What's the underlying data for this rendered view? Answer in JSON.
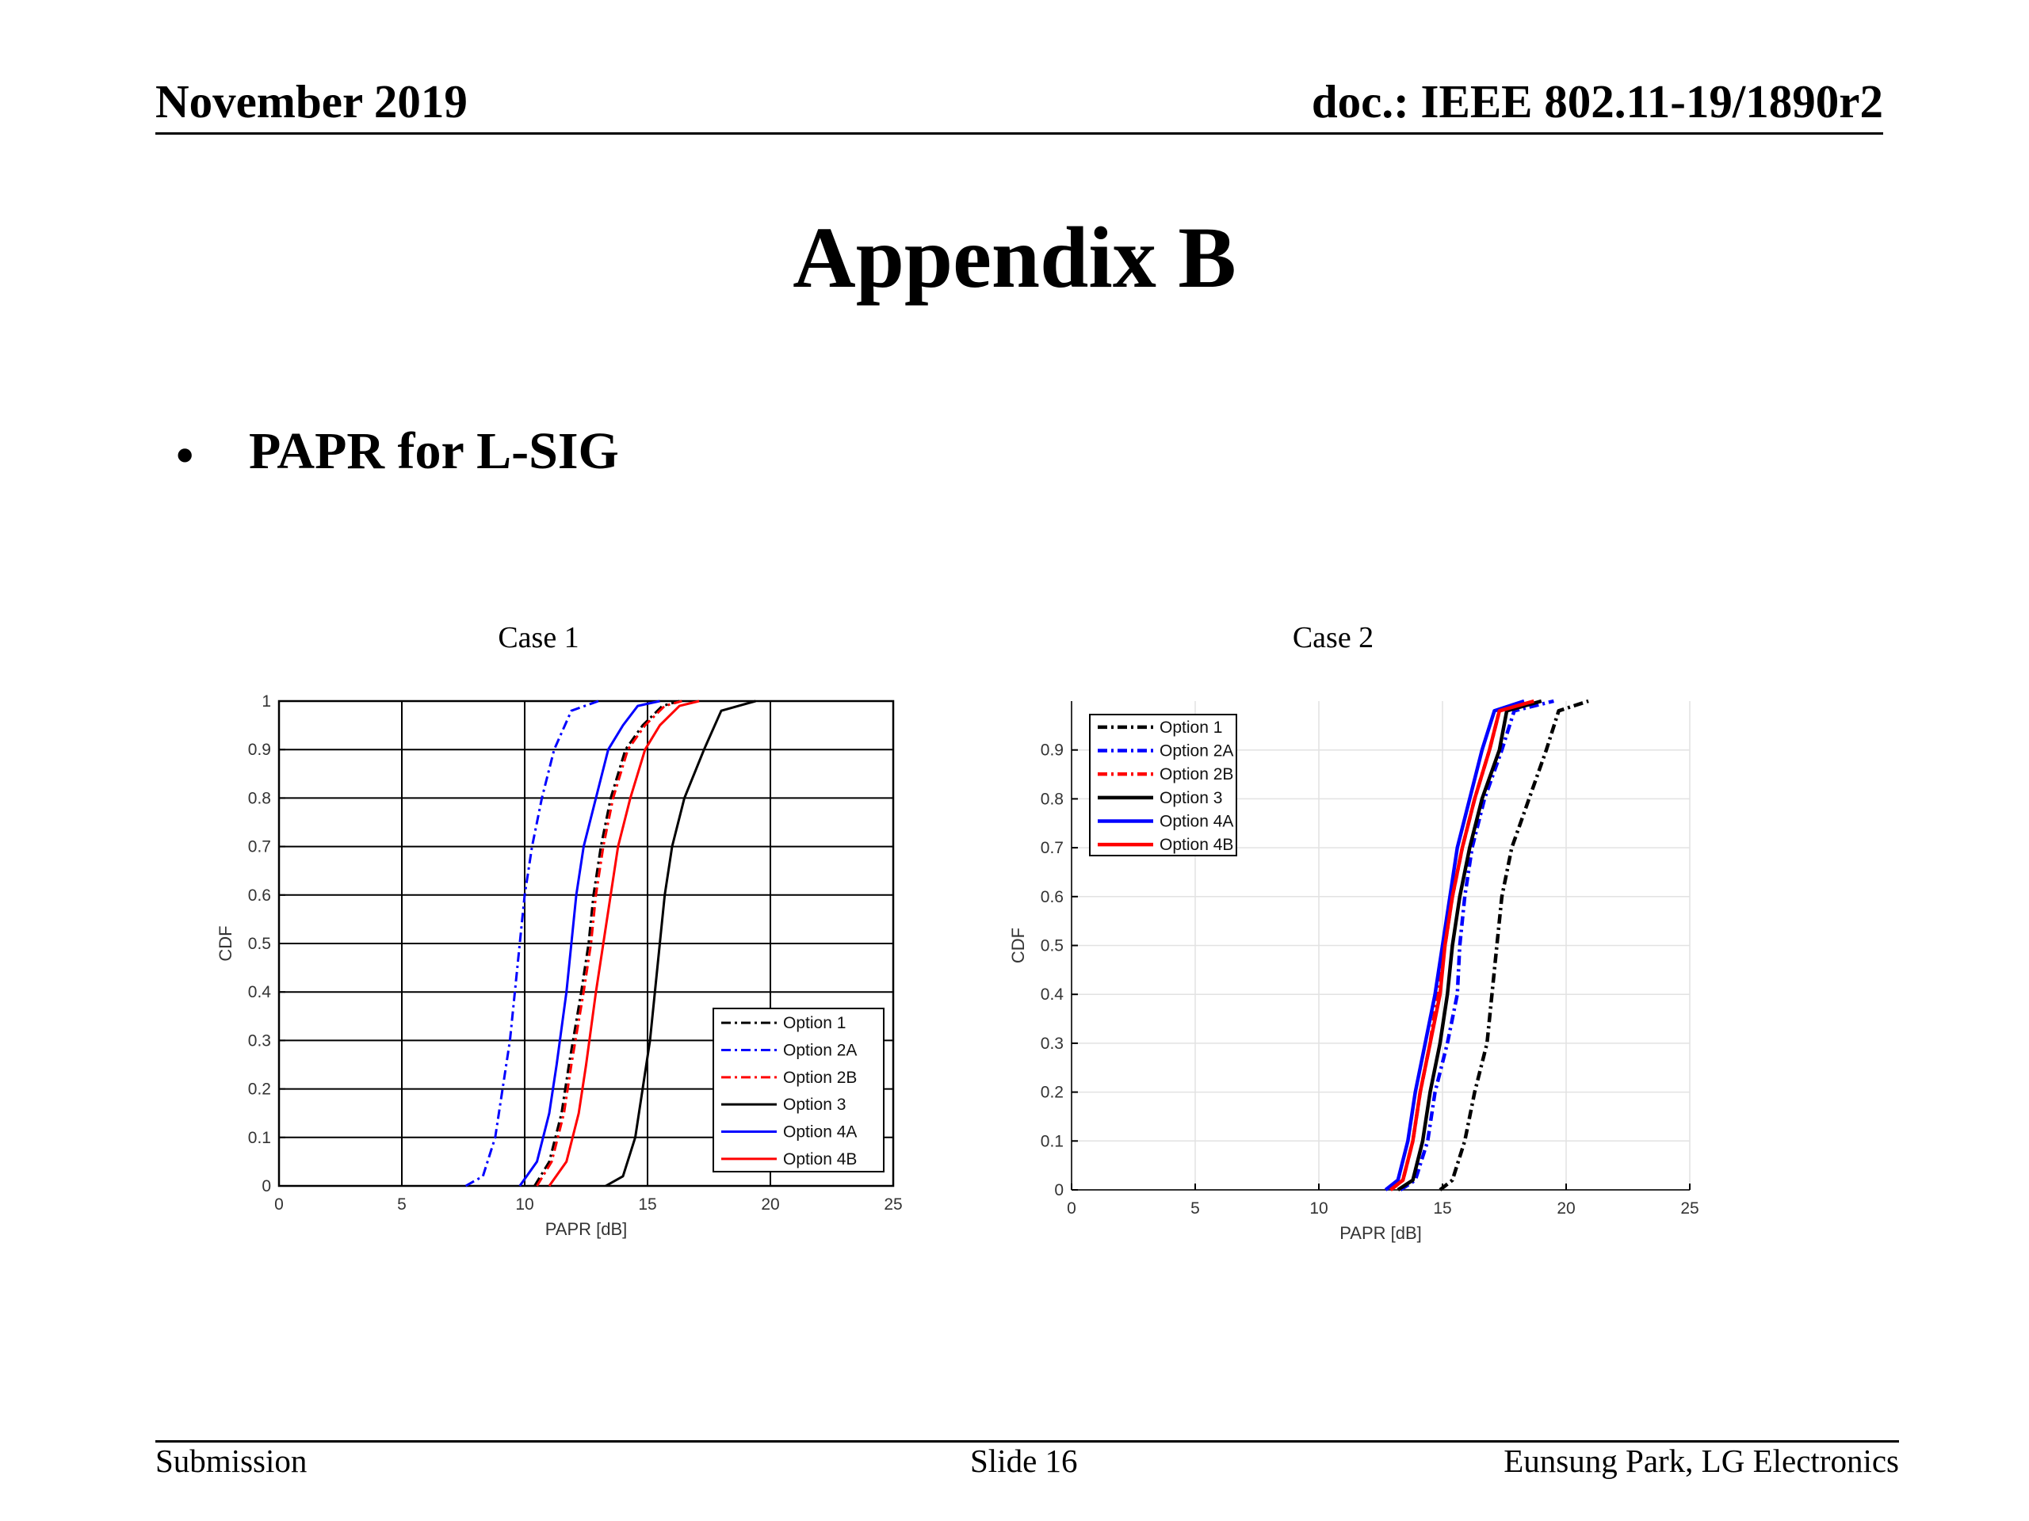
{
  "header": {
    "date": "November 2019",
    "doc": "doc.: IEEE 802.11-19/1890r2"
  },
  "title": "Appendix B",
  "bullet": {
    "symbol": "•",
    "text": "PAPR for L-SIG"
  },
  "footer": {
    "left": "Submission",
    "center": "Slide 16",
    "right": "Eunsung Park, LG Electronics"
  },
  "chart_data": [
    {
      "type": "line",
      "title": "Case 1",
      "xlabel": "PAPR [dB]",
      "ylabel": "CDF",
      "xlim": [
        0,
        25
      ],
      "ylim": [
        0,
        1
      ],
      "xticks": [
        0,
        5,
        10,
        15,
        20,
        25
      ],
      "yticks": [
        0,
        0.1,
        0.2,
        0.3,
        0.4,
        0.5,
        0.6,
        0.7,
        0.8,
        0.9,
        1
      ],
      "ytick_labels": [
        "0",
        "0.1",
        "0.2",
        "0.3",
        "0.4",
        "0.5",
        "0.6",
        "0.7",
        "0.8",
        "0.9",
        "1"
      ],
      "grid": "major",
      "legend_position": "bottom-right",
      "series": [
        {
          "name": "Option 1",
          "color": "#000000",
          "style": "dashdot",
          "x": [
            10.4,
            11.0,
            11.5,
            11.8,
            12.3,
            12.6,
            12.8,
            13.1,
            13.5,
            14.1,
            14.8,
            15.6,
            16.3
          ],
          "y": [
            0,
            0.05,
            0.15,
            0.25,
            0.4,
            0.5,
            0.6,
            0.7,
            0.8,
            0.9,
            0.95,
            0.99,
            1
          ]
        },
        {
          "name": "Option 2A",
          "color": "#0000ff",
          "style": "dashdot",
          "x": [
            7.6,
            8.3,
            8.8,
            9.1,
            9.4,
            9.6,
            9.8,
            10.0,
            10.3,
            10.7,
            11.2,
            11.9,
            13.0
          ],
          "y": [
            0,
            0.02,
            0.1,
            0.2,
            0.3,
            0.4,
            0.5,
            0.6,
            0.7,
            0.8,
            0.9,
            0.98,
            1
          ]
        },
        {
          "name": "Option 2B",
          "color": "#ff0000",
          "style": "dashdot",
          "x": [
            10.5,
            11.1,
            11.6,
            11.9,
            12.4,
            12.7,
            12.9,
            13.2,
            13.6,
            14.2,
            14.9,
            15.7,
            16.4
          ],
          "y": [
            0,
            0.05,
            0.15,
            0.25,
            0.4,
            0.5,
            0.6,
            0.7,
            0.8,
            0.9,
            0.95,
            0.99,
            1
          ]
        },
        {
          "name": "Option 3",
          "color": "#000000",
          "style": "solid",
          "x": [
            13.3,
            14.0,
            14.5,
            14.8,
            15.1,
            15.3,
            15.5,
            15.7,
            16.0,
            16.5,
            17.3,
            18.0,
            19.4
          ],
          "y": [
            0,
            0.02,
            0.1,
            0.2,
            0.3,
            0.4,
            0.5,
            0.6,
            0.7,
            0.8,
            0.9,
            0.98,
            1
          ]
        },
        {
          "name": "Option 4A",
          "color": "#0000ff",
          "style": "solid",
          "x": [
            9.8,
            10.5,
            11.0,
            11.3,
            11.7,
            11.9,
            12.1,
            12.4,
            12.9,
            13.4,
            14.0,
            14.6,
            15.5
          ],
          "y": [
            0,
            0.05,
            0.15,
            0.25,
            0.4,
            0.5,
            0.6,
            0.7,
            0.8,
            0.9,
            0.95,
            0.99,
            1
          ]
        },
        {
          "name": "Option 4B",
          "color": "#ff0000",
          "style": "solid",
          "x": [
            11.0,
            11.7,
            12.2,
            12.5,
            12.9,
            13.2,
            13.5,
            13.8,
            14.3,
            14.9,
            15.5,
            16.3,
            17.1
          ],
          "y": [
            0,
            0.05,
            0.15,
            0.25,
            0.4,
            0.5,
            0.6,
            0.7,
            0.8,
            0.9,
            0.95,
            0.99,
            1
          ]
        }
      ]
    },
    {
      "type": "line",
      "title": "Case 2",
      "xlabel": "PAPR [dB]",
      "ylabel": "CDF",
      "xlim": [
        0,
        25
      ],
      "ylim": [
        0,
        1
      ],
      "xticks": [
        0,
        5,
        10,
        15,
        20,
        25
      ],
      "yticks": [
        0,
        0.1,
        0.2,
        0.3,
        0.4,
        0.5,
        0.6,
        0.7,
        0.8,
        0.9
      ],
      "ytick_labels": [
        "0",
        "0.1",
        "0.2",
        "0.3",
        "0.4",
        "0.5",
        "0.6",
        "0.7",
        "0.8",
        "0.9"
      ],
      "grid": "major-light",
      "legend_position": "top-left",
      "series": [
        {
          "name": "Option 1",
          "color": "#000000",
          "style": "dashdot",
          "x": [
            14.9,
            15.4,
            15.9,
            16.3,
            16.8,
            17.0,
            17.2,
            17.4,
            17.8,
            18.5,
            19.2,
            19.7,
            20.9
          ],
          "y": [
            0,
            0.02,
            0.1,
            0.2,
            0.3,
            0.4,
            0.5,
            0.6,
            0.7,
            0.8,
            0.9,
            0.98,
            1
          ]
        },
        {
          "name": "Option 2A",
          "color": "#0000ff",
          "style": "dashdot",
          "x": [
            13.3,
            13.9,
            14.4,
            14.7,
            15.2,
            15.6,
            15.7,
            15.9,
            16.2,
            16.7,
            17.4,
            17.9,
            19.5
          ],
          "y": [
            0,
            0.02,
            0.1,
            0.2,
            0.3,
            0.4,
            0.5,
            0.6,
            0.7,
            0.8,
            0.9,
            0.98,
            1
          ]
        },
        {
          "name": "Option 2B",
          "color": "#ff0000",
          "style": "dashdot",
          "x": [
            12.9,
            13.4,
            13.8,
            14.1,
            14.5,
            14.8,
            15.1,
            15.4,
            15.8,
            16.3,
            16.9,
            17.3,
            18.8
          ],
          "y": [
            0,
            0.02,
            0.1,
            0.2,
            0.3,
            0.4,
            0.5,
            0.6,
            0.7,
            0.8,
            0.9,
            0.98,
            1
          ]
        },
        {
          "name": "Option 3",
          "color": "#000000",
          "style": "solid",
          "x": [
            13.2,
            13.8,
            14.2,
            14.5,
            14.9,
            15.2,
            15.4,
            15.7,
            16.1,
            16.6,
            17.3,
            17.6,
            19.0
          ],
          "y": [
            0,
            0.02,
            0.1,
            0.2,
            0.3,
            0.4,
            0.5,
            0.6,
            0.7,
            0.8,
            0.9,
            0.98,
            1
          ]
        },
        {
          "name": "Option 4A",
          "color": "#0000ff",
          "style": "solid",
          "x": [
            12.7,
            13.2,
            13.6,
            13.9,
            14.3,
            14.7,
            15.0,
            15.3,
            15.6,
            16.1,
            16.6,
            17.1,
            18.3
          ],
          "y": [
            0,
            0.02,
            0.1,
            0.2,
            0.3,
            0.4,
            0.5,
            0.6,
            0.7,
            0.8,
            0.9,
            0.98,
            1
          ]
        },
        {
          "name": "Option 4B",
          "color": "#ff0000",
          "style": "solid",
          "x": [
            12.9,
            13.4,
            13.8,
            14.1,
            14.5,
            14.9,
            15.1,
            15.4,
            15.8,
            16.3,
            16.9,
            17.3,
            18.7
          ],
          "y": [
            0,
            0.02,
            0.1,
            0.2,
            0.3,
            0.4,
            0.5,
            0.6,
            0.7,
            0.8,
            0.9,
            0.98,
            1
          ]
        }
      ]
    }
  ]
}
